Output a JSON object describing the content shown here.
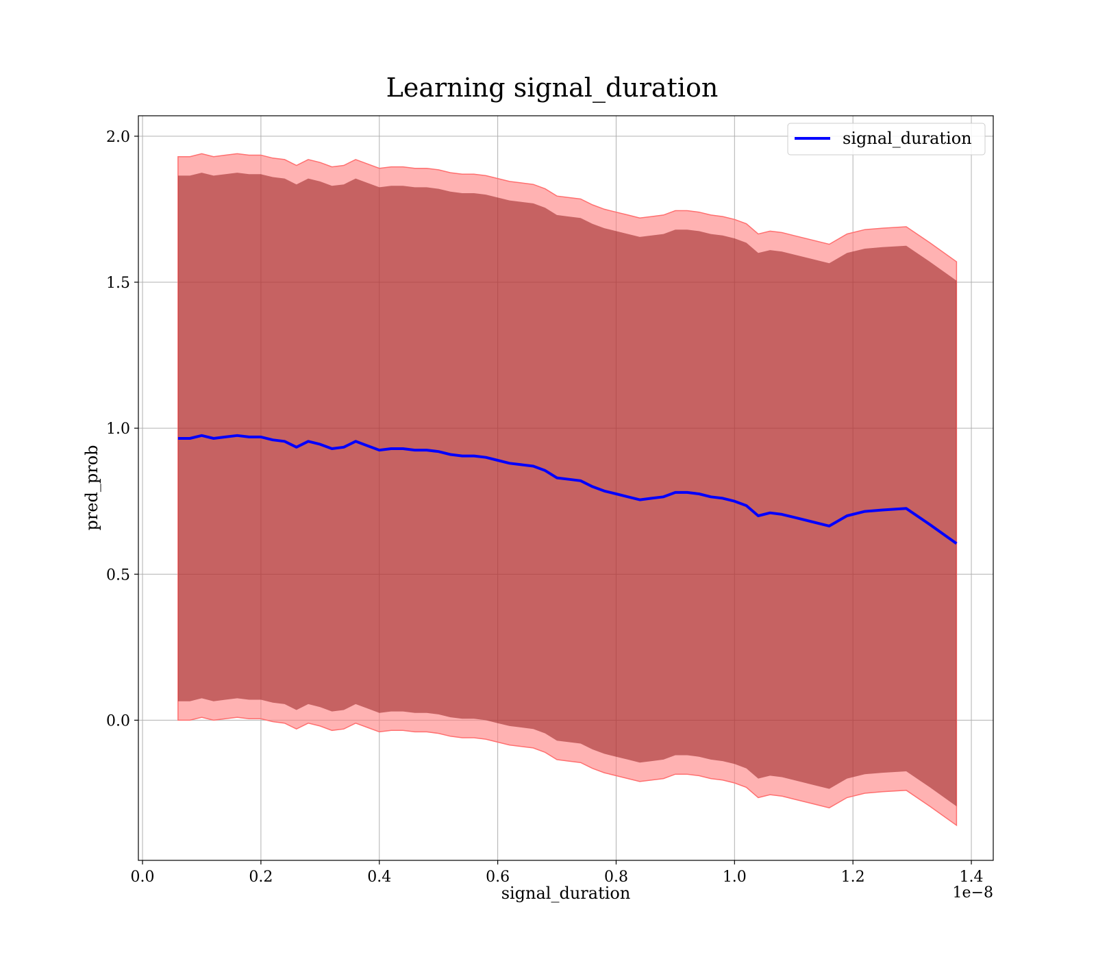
{
  "chart_data": {
    "type": "line",
    "title": "Learning signal_duration",
    "xlabel": "signal_duration",
    "ylabel": "pred_prob",
    "x_offset_text": "1e−8",
    "xlim": [
      -0.007,
      1.437
    ],
    "ylim": [
      -0.48,
      2.07
    ],
    "x_ticks": [
      0.0,
      0.2,
      0.4,
      0.6,
      0.8,
      1.0,
      1.2,
      1.4
    ],
    "x_tick_labels": [
      "0.0",
      "0.2",
      "0.4",
      "0.6",
      "0.8",
      "1.0",
      "1.2",
      "1.4"
    ],
    "y_ticks": [
      0.0,
      0.5,
      1.0,
      1.5,
      2.0
    ],
    "y_tick_labels": [
      "0.0",
      "0.5",
      "1.0",
      "1.5",
      "2.0"
    ],
    "grid": true,
    "legend_position": "top-right",
    "colors": {
      "line": "#0000ff",
      "outer_band": "#ff7f7f",
      "inner_band": "#800000",
      "grid": "#b0b0b0"
    },
    "x": [
      0.06,
      0.08,
      0.1,
      0.12,
      0.14,
      0.16,
      0.18,
      0.2,
      0.22,
      0.24,
      0.26,
      0.28,
      0.3,
      0.32,
      0.34,
      0.36,
      0.38,
      0.4,
      0.42,
      0.44,
      0.46,
      0.48,
      0.5,
      0.52,
      0.54,
      0.56,
      0.58,
      0.6,
      0.62,
      0.64,
      0.66,
      0.68,
      0.7,
      0.72,
      0.74,
      0.76,
      0.78,
      0.8,
      0.82,
      0.84,
      0.86,
      0.88,
      0.9,
      0.92,
      0.94,
      0.96,
      0.98,
      1.0,
      1.02,
      1.04,
      1.06,
      1.08,
      1.1,
      1.13,
      1.16,
      1.19,
      1.22,
      1.25,
      1.29,
      1.33,
      1.375
    ],
    "series": [
      {
        "name": "signal_duration",
        "values": [
          0.965,
          0.965,
          0.975,
          0.965,
          0.97,
          0.975,
          0.97,
          0.97,
          0.96,
          0.955,
          0.935,
          0.955,
          0.945,
          0.93,
          0.935,
          0.955,
          0.94,
          0.925,
          0.93,
          0.93,
          0.925,
          0.925,
          0.92,
          0.91,
          0.905,
          0.905,
          0.9,
          0.89,
          0.88,
          0.875,
          0.87,
          0.855,
          0.83,
          0.825,
          0.82,
          0.8,
          0.785,
          0.775,
          0.765,
          0.755,
          0.76,
          0.765,
          0.78,
          0.78,
          0.775,
          0.765,
          0.76,
          0.75,
          0.735,
          0.7,
          0.71,
          0.705,
          0.695,
          0.68,
          0.665,
          0.7,
          0.715,
          0.72,
          0.725,
          0.67,
          0.605
        ]
      }
    ],
    "band_outer_halfwidth": [
      0.965,
      0.965,
      0.965,
      0.965,
      0.965,
      0.965,
      0.965,
      0.965,
      0.965,
      0.965,
      0.965,
      0.965,
      0.965,
      0.965,
      0.965,
      0.965,
      0.965,
      0.965,
      0.965,
      0.965,
      0.965,
      0.965,
      0.965,
      0.965,
      0.965,
      0.965,
      0.965,
      0.965,
      0.965,
      0.965,
      0.965,
      0.965,
      0.965,
      0.965,
      0.965,
      0.965,
      0.965,
      0.965,
      0.965,
      0.965,
      0.965,
      0.965,
      0.965,
      0.965,
      0.965,
      0.965,
      0.965,
      0.965,
      0.965,
      0.965,
      0.965,
      0.965,
      0.965,
      0.965,
      0.965,
      0.965,
      0.965,
      0.965,
      0.965,
      0.965,
      0.965
    ],
    "band_inner_halfwidth": [
      0.9,
      0.9,
      0.9,
      0.9,
      0.9,
      0.9,
      0.9,
      0.9,
      0.9,
      0.9,
      0.9,
      0.9,
      0.9,
      0.9,
      0.9,
      0.9,
      0.9,
      0.9,
      0.9,
      0.9,
      0.9,
      0.9,
      0.9,
      0.9,
      0.9,
      0.9,
      0.9,
      0.9,
      0.9,
      0.9,
      0.9,
      0.9,
      0.9,
      0.9,
      0.9,
      0.9,
      0.9,
      0.9,
      0.9,
      0.9,
      0.9,
      0.9,
      0.9,
      0.9,
      0.9,
      0.9,
      0.9,
      0.9,
      0.9,
      0.9,
      0.9,
      0.9,
      0.9,
      0.9,
      0.9,
      0.9,
      0.9,
      0.9,
      0.9,
      0.9,
      0.9
    ]
  }
}
